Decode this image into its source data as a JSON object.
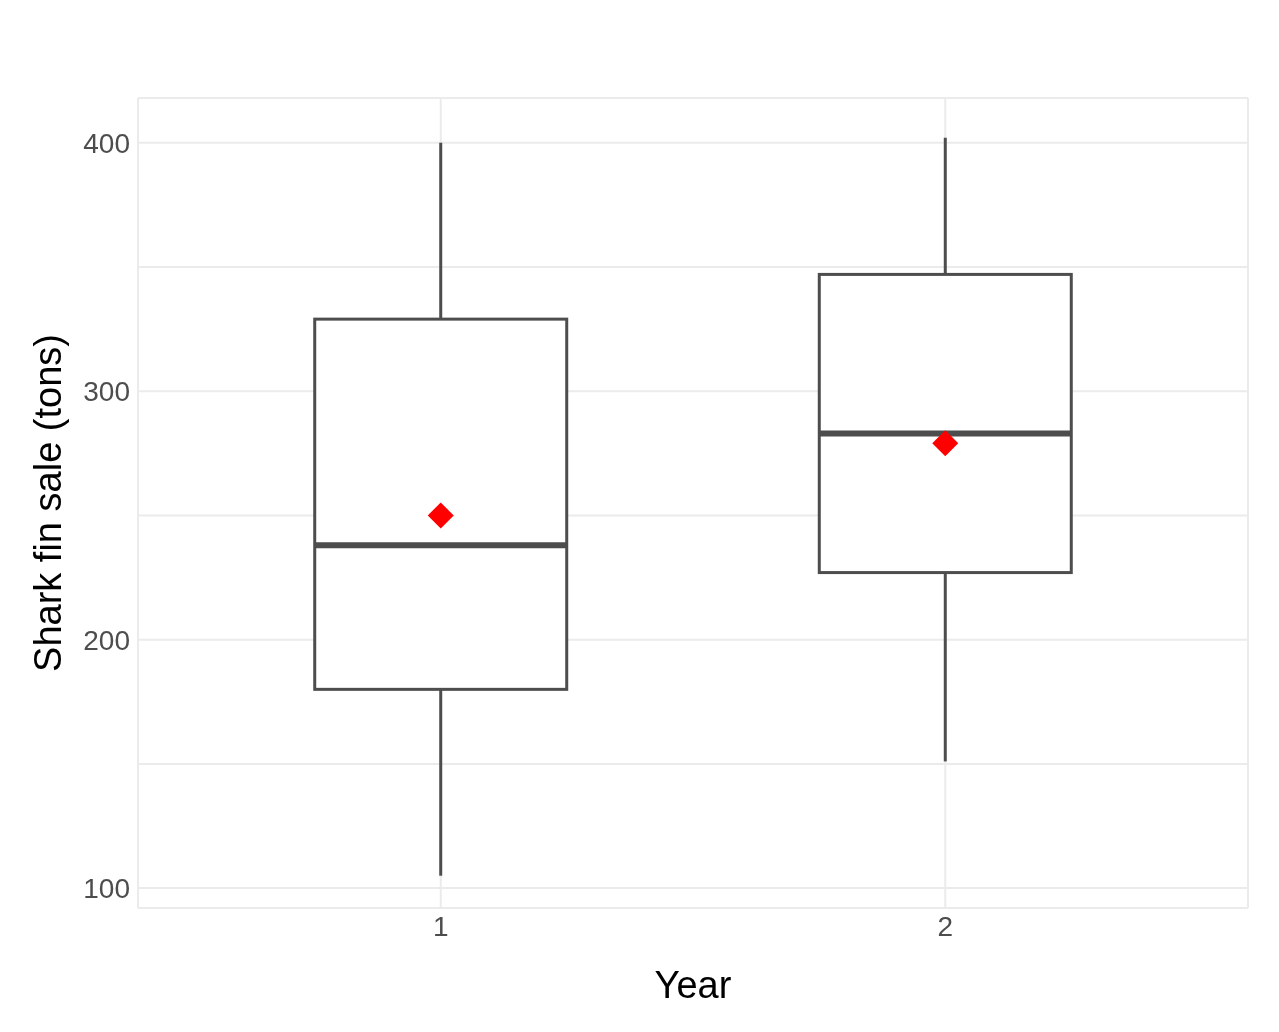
{
  "chart_data": {
    "type": "box",
    "xlabel": "Year",
    "ylabel": "Shark fin sale (tons)",
    "categories": [
      "1",
      "2"
    ],
    "ylim": [
      92,
      418
    ],
    "yticks": [
      100,
      {
        "value": 150,
        "label": null
      },
      200,
      {
        "value": 250,
        "label": null
      },
      300,
      {
        "value": 350,
        "label": null
      },
      400
    ],
    "grid": true,
    "series": [
      {
        "color": "#4d4d4d",
        "boxes": [
          {
            "low": 105,
            "q1": 180,
            "median": 238,
            "q3": 329,
            "high": 400
          },
          {
            "low": 151,
            "q1": 227,
            "median": 283,
            "q3": 347,
            "high": 402
          }
        ]
      },
      {
        "type": "scatter",
        "color": "#ff0000",
        "marker": "diamond",
        "x": [
          "1",
          "2"
        ],
        "values": [
          250,
          279
        ]
      }
    ]
  }
}
